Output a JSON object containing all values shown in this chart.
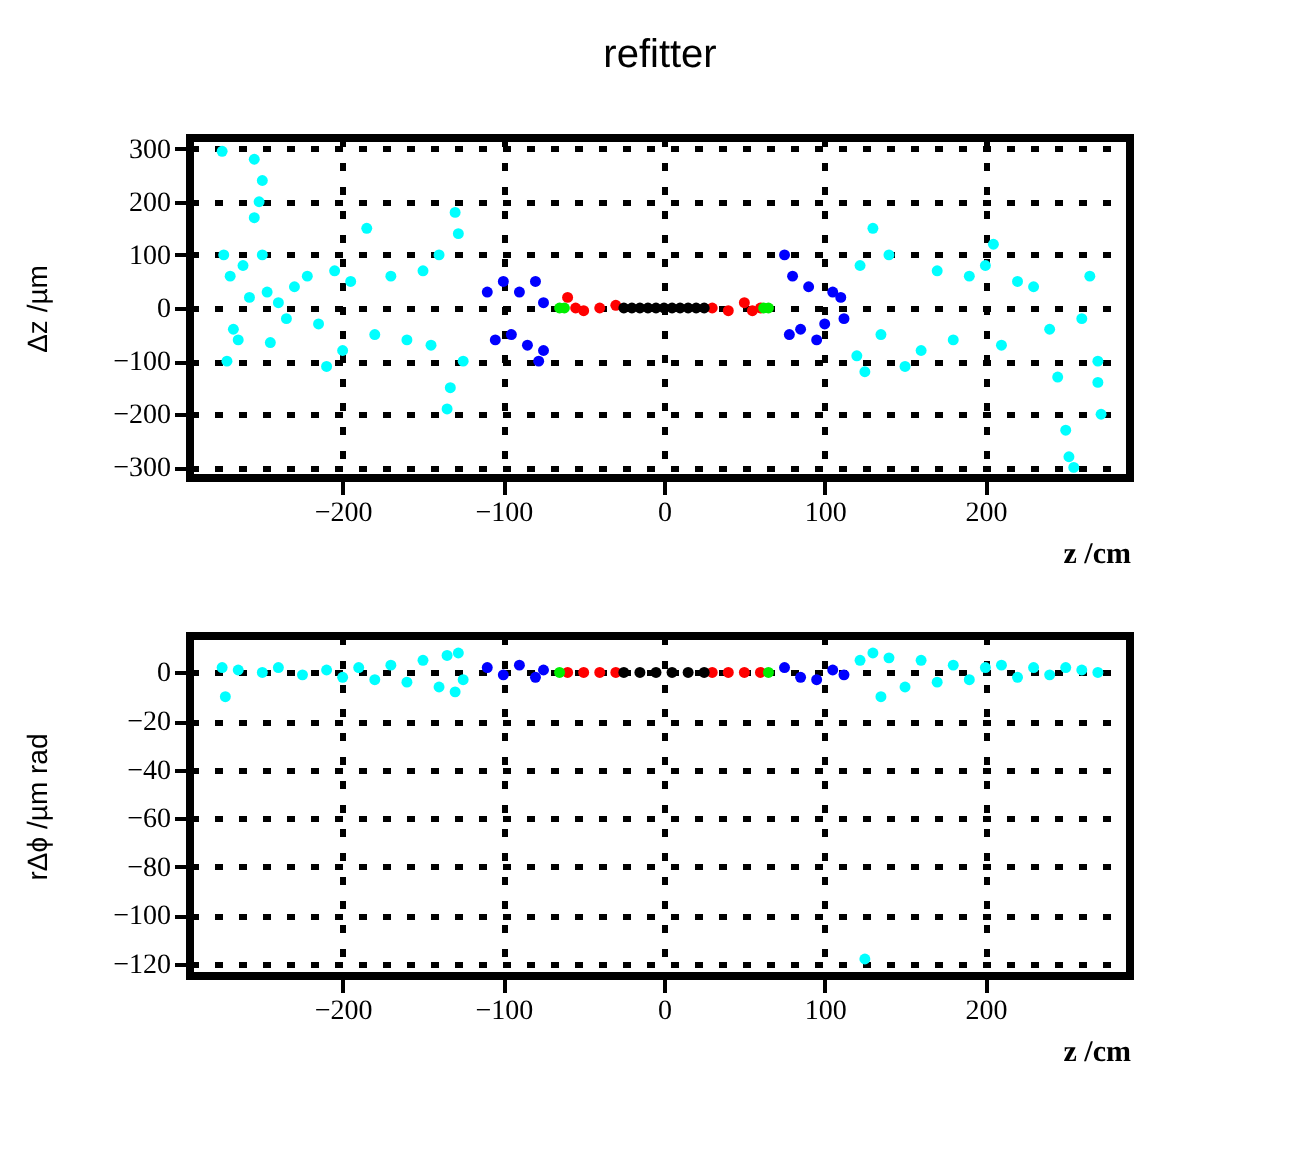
{
  "chart_data": [
    {
      "type": "scatter",
      "title": "refitter",
      "xlabel": "z /cm",
      "ylabel": "Δz /µm",
      "xlim": [
        -295,
        290
      ],
      "ylim": [
        -320,
        320
      ],
      "xticks": [
        -200,
        -100,
        0,
        100,
        200
      ],
      "yticks": [
        -300,
        -200,
        -100,
        0,
        100,
        200,
        300
      ],
      "grid": true,
      "marker": "circle",
      "series": [
        {
          "color": "#00ffff",
          "x": [
            -275,
            -274,
            -272,
            -270,
            -268,
            -265,
            -262,
            -258,
            -255,
            -255,
            -252,
            -250,
            -250,
            -247,
            -245,
            -240,
            -235,
            -230,
            -222,
            -215,
            -210,
            -205,
            -200,
            -195,
            -185,
            -180,
            -170,
            -160,
            -150,
            -145,
            -140,
            -135,
            -133,
            -130,
            -128,
            -125,
            120,
            122,
            125,
            130,
            135,
            140,
            150,
            160,
            170,
            180,
            190,
            200,
            205,
            210,
            220,
            230,
            240,
            245,
            250,
            252,
            255,
            260,
            265,
            270,
            270,
            272
          ],
          "values": [
            295,
            100,
            -100,
            60,
            -40,
            -60,
            80,
            20,
            280,
            170,
            200,
            240,
            100,
            30,
            -65,
            10,
            -20,
            40,
            60,
            -30,
            -110,
            70,
            -80,
            50,
            150,
            -50,
            60,
            -60,
            70,
            -70,
            100,
            -190,
            -150,
            180,
            140,
            -100,
            -90,
            80,
            -120,
            150,
            -50,
            100,
            -110,
            -80,
            70,
            -60,
            60,
            80,
            120,
            -70,
            50,
            40,
            -40,
            -130,
            -230,
            -280,
            -300,
            -20,
            60,
            -100,
            -140,
            -200
          ]
        },
        {
          "color": "#0000ff",
          "x": [
            -110,
            -105,
            -100,
            -95,
            -90,
            -85,
            -80,
            -78,
            -75,
            -75,
            75,
            78,
            80,
            85,
            90,
            95,
            100,
            105,
            110,
            112
          ],
          "values": [
            30,
            -60,
            50,
            -50,
            30,
            -70,
            50,
            -100,
            -80,
            10,
            100,
            -50,
            60,
            -40,
            40,
            -60,
            -30,
            30,
            20,
            -20
          ]
        },
        {
          "color": "#ff0000",
          "x": [
            -60,
            -55,
            -50,
            -40,
            -30,
            30,
            40,
            50,
            55,
            60
          ],
          "values": [
            20,
            0,
            -5,
            0,
            5,
            0,
            -5,
            10,
            -5,
            0
          ]
        },
        {
          "color": "#00ee00",
          "x": [
            -65,
            -62,
            62,
            65
          ],
          "values": [
            0,
            0,
            0,
            0
          ]
        },
        {
          "color": "#000000",
          "x": [
            -25,
            -20,
            -15,
            -10,
            -5,
            0,
            5,
            10,
            15,
            20,
            25
          ],
          "values": [
            0,
            0,
            0,
            0,
            0,
            0,
            0,
            0,
            0,
            0,
            0
          ]
        }
      ]
    },
    {
      "type": "scatter",
      "xlabel": "z /cm",
      "ylabel": "rΔϕ /µm rad",
      "xlim": [
        -295,
        290
      ],
      "ylim": [
        -125,
        15
      ],
      "xticks": [
        -200,
        -100,
        0,
        100,
        200
      ],
      "yticks": [
        -120,
        -100,
        -80,
        -60,
        -40,
        -20,
        0
      ],
      "grid": true,
      "marker": "circle",
      "series": [
        {
          "color": "#00ffff",
          "x": [
            -275,
            -273,
            -265,
            -250,
            -240,
            -225,
            -210,
            -200,
            -190,
            -180,
            -170,
            -160,
            -150,
            -140,
            -135,
            -130,
            -128,
            -125,
            122,
            125,
            130,
            135,
            140,
            150,
            160,
            170,
            180,
            190,
            200,
            210,
            220,
            230,
            240,
            250,
            260,
            270
          ],
          "values": [
            2,
            -10,
            1,
            0,
            2,
            -1,
            1,
            -2,
            2,
            -3,
            3,
            -4,
            5,
            -6,
            7,
            -8,
            8,
            -3,
            5,
            -118,
            8,
            -10,
            6,
            -6,
            5,
            -4,
            3,
            -3,
            2,
            3,
            -2,
            2,
            -1,
            2,
            1,
            0
          ]
        },
        {
          "color": "#0000ff",
          "x": [
            -110,
            -100,
            -90,
            -80,
            -75,
            75,
            85,
            95,
            105,
            112
          ],
          "values": [
            2,
            -1,
            3,
            -2,
            1,
            2,
            -2,
            -3,
            1,
            -1
          ]
        },
        {
          "color": "#ff0000",
          "x": [
            -60,
            -50,
            -40,
            -30,
            30,
            40,
            50,
            60
          ],
          "values": [
            0,
            0,
            0,
            0,
            0,
            0,
            0,
            0
          ]
        },
        {
          "color": "#00ee00",
          "x": [
            -65,
            65
          ],
          "values": [
            0,
            0
          ]
        },
        {
          "color": "#000000",
          "x": [
            -25,
            -15,
            -5,
            5,
            15,
            25
          ],
          "values": [
            0,
            0,
            0,
            0,
            0,
            0
          ]
        }
      ]
    }
  ]
}
